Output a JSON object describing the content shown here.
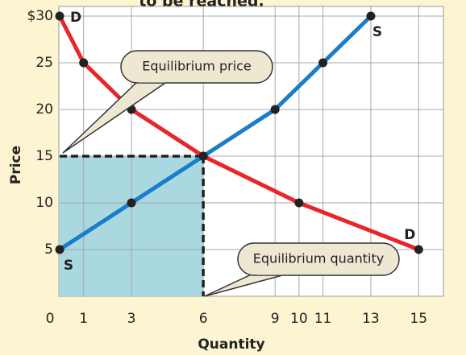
{
  "chart_data": {
    "type": "line",
    "title": "to be reached.",
    "xlabel": "Quantity",
    "ylabel": "Price",
    "origin_label": "0",
    "xlim": [
      0,
      16
    ],
    "ylim": [
      0,
      30
    ],
    "xticks": [
      1,
      3,
      6,
      9,
      10,
      11,
      13,
      15
    ],
    "yticks": [
      5,
      10,
      15,
      20,
      25,
      {
        "value": 30,
        "label": "$30"
      }
    ],
    "grid": true,
    "series": [
      {
        "name": "D",
        "color": "#e8262a",
        "x": [
          0,
          1,
          3,
          6,
          10,
          15
        ],
        "values": [
          30,
          25,
          20,
          15,
          10,
          5
        ]
      },
      {
        "name": "S",
        "color": "#1b7dc9",
        "x": [
          0,
          3,
          6,
          9,
          11,
          13
        ],
        "values": [
          5,
          10,
          15,
          20,
          25,
          30
        ]
      }
    ],
    "equilibrium": {
      "x": 6,
      "y": 15
    },
    "annotations": [
      "Equilibrium price",
      "Equilibrium quantity"
    ]
  }
}
